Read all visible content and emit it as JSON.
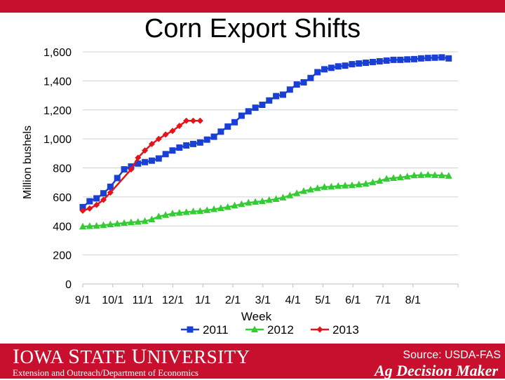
{
  "slide": {
    "title": "Corn Export Shifts"
  },
  "footer": {
    "logo_text": "Iowa State University",
    "department": "Extension and Outreach/Department of Economics",
    "source": "Source: USDA-FAS",
    "brand": "Ag Decision Maker"
  },
  "colors": {
    "banner": "#c8102e",
    "series_2011": "#1a3fd6",
    "series_2012": "#33cc33",
    "series_2013": "#e3141b",
    "grid": "#d0d0d0"
  },
  "chart_data": {
    "type": "line",
    "title": "Corn Export Shifts",
    "xlabel": "Week",
    "ylabel": "Million bushels",
    "ylim": [
      0,
      1600
    ],
    "yticks": [
      0,
      200,
      400,
      600,
      800,
      1000,
      1200,
      1400,
      1600
    ],
    "ytick_labels": [
      "0",
      "200",
      "400",
      "600",
      "800",
      "1,000",
      "1,200",
      "1,400",
      "1,600"
    ],
    "xticks": [
      0,
      1,
      2,
      3,
      4,
      5,
      6,
      7,
      8,
      9,
      10,
      11
    ],
    "xtick_labels": [
      "9/1",
      "10/1",
      "11/1",
      "12/1",
      "1/1",
      "2/1",
      "3/1",
      "4/1",
      "5/1",
      "6/1",
      "7/1",
      "8/1"
    ],
    "xlim": [
      0,
      12.5
    ],
    "grid": "horizontal",
    "legend": "bottom",
    "series": [
      {
        "name": "2011",
        "marker": "square",
        "x": [
          0.0,
          0.23,
          0.46,
          0.69,
          0.92,
          1.15,
          1.38,
          1.61,
          1.84,
          2.07,
          2.3,
          2.53,
          2.76,
          2.99,
          3.22,
          3.45,
          3.68,
          3.91,
          4.14,
          4.37,
          4.6,
          4.83,
          5.06,
          5.29,
          5.52,
          5.75,
          5.98,
          6.21,
          6.44,
          6.67,
          6.9,
          7.13,
          7.36,
          7.59,
          7.82,
          8.05,
          8.28,
          8.51,
          8.74,
          8.97,
          9.2,
          9.43,
          9.66,
          9.89,
          10.12,
          10.35,
          10.58,
          10.81,
          11.04,
          11.27,
          11.5,
          11.73,
          11.96,
          12.19
        ],
        "y": [
          530,
          570,
          590,
          625,
          670,
          730,
          790,
          810,
          830,
          840,
          850,
          865,
          895,
          920,
          940,
          955,
          965,
          975,
          995,
          1015,
          1050,
          1085,
          1115,
          1160,
          1190,
          1215,
          1235,
          1265,
          1295,
          1305,
          1340,
          1375,
          1390,
          1420,
          1460,
          1480,
          1490,
          1500,
          1505,
          1515,
          1520,
          1525,
          1530,
          1535,
          1540,
          1545,
          1545,
          1548,
          1550,
          1555,
          1558,
          1560,
          1562,
          1555
        ]
      },
      {
        "name": "2012",
        "marker": "triangle",
        "x": [
          0.0,
          0.23,
          0.46,
          0.69,
          0.92,
          1.15,
          1.38,
          1.61,
          1.84,
          2.07,
          2.3,
          2.53,
          2.76,
          2.99,
          3.22,
          3.45,
          3.68,
          3.91,
          4.14,
          4.37,
          4.6,
          4.83,
          5.06,
          5.29,
          5.52,
          5.75,
          5.98,
          6.21,
          6.44,
          6.67,
          6.9,
          7.13,
          7.36,
          7.59,
          7.82,
          8.05,
          8.28,
          8.51,
          8.74,
          8.97,
          9.2,
          9.43,
          9.66,
          9.89,
          10.12,
          10.35,
          10.58,
          10.81,
          11.04,
          11.27,
          11.5,
          11.73,
          11.96,
          12.19
        ],
        "y": [
          395,
          398,
          400,
          405,
          410,
          415,
          420,
          425,
          428,
          433,
          445,
          465,
          475,
          485,
          490,
          495,
          500,
          502,
          508,
          515,
          522,
          530,
          540,
          550,
          560,
          565,
          570,
          578,
          585,
          595,
          610,
          625,
          640,
          650,
          660,
          668,
          670,
          675,
          678,
          680,
          685,
          690,
          700,
          710,
          725,
          730,
          735,
          740,
          748,
          750,
          752,
          750,
          748,
          745
        ]
      },
      {
        "name": "2013",
        "marker": "diamond",
        "x": [
          0.0,
          0.23,
          0.46,
          0.69,
          0.92,
          1.61,
          1.84,
          2.07,
          2.3,
          2.53,
          2.76,
          2.99,
          3.22,
          3.45,
          3.68,
          3.91
        ],
        "y": [
          505,
          520,
          545,
          580,
          630,
          790,
          870,
          920,
          965,
          1000,
          1030,
          1055,
          1090,
          1125,
          1125,
          1125
        ]
      }
    ]
  }
}
